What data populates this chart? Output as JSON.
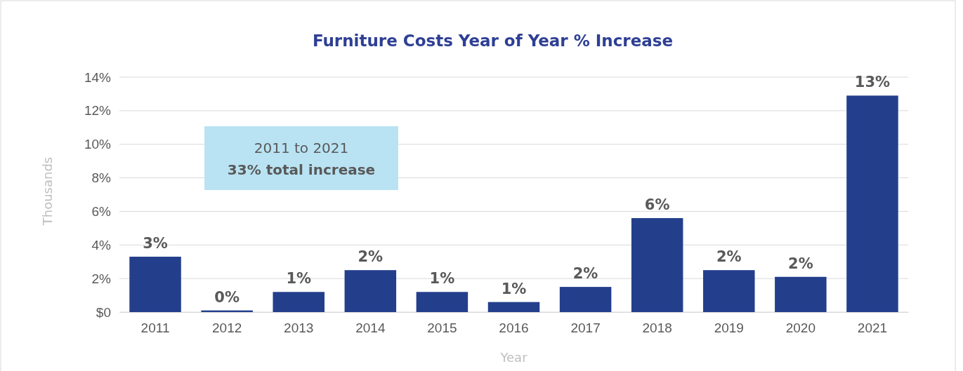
{
  "chart_data": {
    "type": "bar",
    "title": "Furniture Costs Year of Year % Increase",
    "xlabel": "Year",
    "ylabel": "Thousands",
    "categories": [
      "2011",
      "2012",
      "2013",
      "2014",
      "2015",
      "2016",
      "2017",
      "2018",
      "2019",
      "2020",
      "2021"
    ],
    "values": [
      3.3,
      0.1,
      1.2,
      2.5,
      1.2,
      0.6,
      1.5,
      5.6,
      2.5,
      2.1,
      12.9
    ],
    "value_labels": [
      "3%",
      "0%",
      "1%",
      "2%",
      "1%",
      "1%",
      "2%",
      "6%",
      "2%",
      "2%",
      "13%"
    ],
    "color": "#233f8c",
    "ylim": [
      0,
      14
    ],
    "yticks": [
      {
        "value": 0,
        "label": "$0"
      },
      {
        "value": 2,
        "label": "2%"
      },
      {
        "value": 4,
        "label": "4%"
      },
      {
        "value": 6,
        "label": "6%"
      },
      {
        "value": 8,
        "label": "8%"
      },
      {
        "value": 10,
        "label": "10%"
      },
      {
        "value": 12,
        "label": "12%"
      },
      {
        "value": 14,
        "label": "14%"
      }
    ],
    "grid": "y",
    "annotations": [
      "2011 to 2021",
      "33% total increase"
    ]
  }
}
